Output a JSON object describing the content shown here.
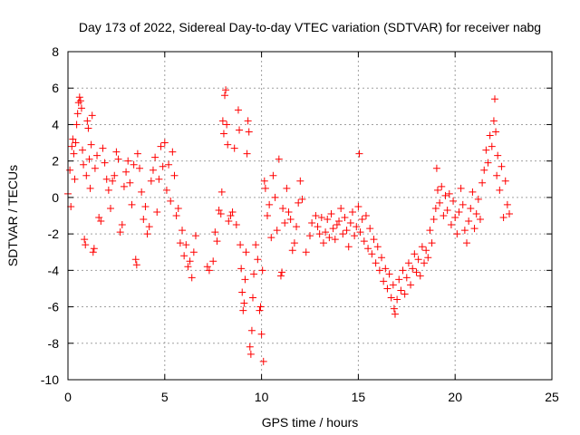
{
  "chart_data": {
    "type": "scatter",
    "title": "Day 173 of 2022, Sidereal Day-to-day VTEC variation (SDTVAR) for receiver nabg",
    "xlabel": "GPS time / hours",
    "ylabel": "SDTVAR / TECUs",
    "xlim": [
      0,
      25
    ],
    "ylim": [
      -10,
      8
    ],
    "xticks": [
      0,
      5,
      10,
      15,
      20,
      25
    ],
    "yticks": [
      -10,
      -8,
      -6,
      -4,
      -2,
      0,
      2,
      4,
      6,
      8
    ],
    "grid": true,
    "marker": "+",
    "color": "#ff0000",
    "series": [
      {
        "name": "SDTVAR",
        "points": [
          [
            0.0,
            0.2
          ],
          [
            0.1,
            1.5
          ],
          [
            0.15,
            -0.5
          ],
          [
            0.2,
            2.8
          ],
          [
            0.25,
            3.2
          ],
          [
            0.3,
            2.4
          ],
          [
            0.35,
            1.0
          ],
          [
            0.4,
            3.0
          ],
          [
            0.45,
            4.0
          ],
          [
            0.5,
            4.6
          ],
          [
            0.55,
            5.2
          ],
          [
            0.6,
            5.5
          ],
          [
            0.65,
            5.3
          ],
          [
            0.7,
            4.9
          ],
          [
            0.75,
            2.6
          ],
          [
            0.8,
            1.8
          ],
          [
            0.85,
            -2.3
          ],
          [
            0.9,
            -2.6
          ],
          [
            0.95,
            1.2
          ],
          [
            1.0,
            4.2
          ],
          [
            1.05,
            3.8
          ],
          [
            1.1,
            2.1
          ],
          [
            1.15,
            0.5
          ],
          [
            1.2,
            2.9
          ],
          [
            1.25,
            4.5
          ],
          [
            1.3,
            -3.0
          ],
          [
            1.35,
            -2.8
          ],
          [
            1.4,
            1.6
          ],
          [
            1.5,
            2.3
          ],
          [
            1.6,
            -1.1
          ],
          [
            1.7,
            -1.3
          ],
          [
            1.8,
            2.7
          ],
          [
            1.9,
            1.9
          ],
          [
            2.0,
            1.0
          ],
          [
            2.1,
            0.4
          ],
          [
            2.2,
            -0.6
          ],
          [
            2.3,
            0.9
          ],
          [
            2.4,
            1.2
          ],
          [
            2.5,
            2.5
          ],
          [
            2.6,
            2.1
          ],
          [
            2.7,
            -1.9
          ],
          [
            2.8,
            -1.5
          ],
          [
            2.9,
            0.6
          ],
          [
            3.0,
            1.4
          ],
          [
            3.1,
            2.0
          ],
          [
            3.2,
            0.8
          ],
          [
            3.3,
            -0.4
          ],
          [
            3.4,
            1.8
          ],
          [
            3.5,
            -3.4
          ],
          [
            3.55,
            -3.7
          ],
          [
            3.6,
            2.4
          ],
          [
            3.7,
            1.6
          ],
          [
            3.8,
            0.3
          ],
          [
            3.9,
            -1.2
          ],
          [
            4.0,
            -0.5
          ],
          [
            4.1,
            -2.0
          ],
          [
            4.2,
            -1.6
          ],
          [
            4.3,
            0.9
          ],
          [
            4.4,
            1.5
          ],
          [
            4.5,
            2.2
          ],
          [
            4.6,
            -0.8
          ],
          [
            4.7,
            1.0
          ],
          [
            4.8,
            2.8
          ],
          [
            4.9,
            1.7
          ],
          [
            5.0,
            3.0
          ],
          [
            5.1,
            0.4
          ],
          [
            5.2,
            1.8
          ],
          [
            5.3,
            -0.2
          ],
          [
            5.4,
            2.5
          ],
          [
            5.5,
            1.2
          ],
          [
            5.6,
            -1.0
          ],
          [
            5.7,
            -0.6
          ],
          [
            5.8,
            -2.5
          ],
          [
            5.9,
            -1.8
          ],
          [
            6.0,
            -3.2
          ],
          [
            6.1,
            -2.6
          ],
          [
            6.2,
            -3.8
          ],
          [
            6.3,
            -3.5
          ],
          [
            6.4,
            -4.4
          ],
          [
            6.5,
            -3.0
          ],
          [
            6.6,
            -2.1
          ],
          [
            7.2,
            -3.8
          ],
          [
            7.3,
            -4.0
          ],
          [
            7.5,
            -3.5
          ],
          [
            7.6,
            -1.9
          ],
          [
            7.7,
            -2.4
          ],
          [
            7.8,
            -0.7
          ],
          [
            7.9,
            -0.9
          ],
          [
            7.95,
            0.3
          ],
          [
            8.0,
            4.2
          ],
          [
            8.05,
            3.5
          ],
          [
            8.1,
            5.6
          ],
          [
            8.15,
            5.9
          ],
          [
            8.2,
            4.0
          ],
          [
            8.25,
            2.9
          ],
          [
            8.3,
            -1.3
          ],
          [
            8.4,
            -1.0
          ],
          [
            8.5,
            -0.8
          ],
          [
            8.6,
            2.7
          ],
          [
            8.7,
            -1.5
          ],
          [
            8.8,
            4.8
          ],
          [
            8.85,
            3.7
          ],
          [
            8.9,
            -2.6
          ],
          [
            8.95,
            -3.9
          ],
          [
            9.0,
            -5.2
          ],
          [
            9.05,
            -6.2
          ],
          [
            9.1,
            -5.8
          ],
          [
            9.15,
            -4.5
          ],
          [
            9.2,
            -3.0
          ],
          [
            9.25,
            2.4
          ],
          [
            9.3,
            4.2
          ],
          [
            9.35,
            3.6
          ],
          [
            9.4,
            -8.2
          ],
          [
            9.45,
            -8.6
          ],
          [
            9.5,
            -7.3
          ],
          [
            9.55,
            -5.5
          ],
          [
            9.6,
            -4.2
          ],
          [
            9.7,
            -2.6
          ],
          [
            9.8,
            -3.4
          ],
          [
            9.9,
            -6.2
          ],
          [
            9.95,
            -6.0
          ],
          [
            10.0,
            -7.5
          ],
          [
            10.05,
            -4.0
          ],
          [
            10.1,
            -9.0
          ],
          [
            10.15,
            0.9
          ],
          [
            10.2,
            0.5
          ],
          [
            10.3,
            -1.0
          ],
          [
            10.4,
            -0.4
          ],
          [
            10.5,
            -2.2
          ],
          [
            10.6,
            1.2
          ],
          [
            10.7,
            0.0
          ],
          [
            10.8,
            -1.8
          ],
          [
            10.9,
            2.1
          ],
          [
            11.0,
            -4.3
          ],
          [
            11.05,
            -4.1
          ],
          [
            11.1,
            -0.6
          ],
          [
            11.2,
            -1.4
          ],
          [
            11.3,
            0.5
          ],
          [
            11.4,
            -0.8
          ],
          [
            11.5,
            -1.2
          ],
          [
            11.6,
            -2.9
          ],
          [
            11.7,
            -2.5
          ],
          [
            11.8,
            -1.6
          ],
          [
            11.9,
            -0.3
          ],
          [
            12.0,
            0.9
          ],
          [
            12.1,
            -0.1
          ],
          [
            12.3,
            -3.0
          ],
          [
            12.5,
            -2.1
          ],
          [
            12.6,
            -1.4
          ],
          [
            12.8,
            -1.0
          ],
          [
            12.9,
            -1.6
          ],
          [
            13.0,
            -2.0
          ],
          [
            13.1,
            -1.1
          ],
          [
            13.2,
            -2.5
          ],
          [
            13.3,
            -1.9
          ],
          [
            13.4,
            -1.2
          ],
          [
            13.5,
            -2.2
          ],
          [
            13.6,
            -0.9
          ],
          [
            13.7,
            -1.7
          ],
          [
            13.8,
            -2.3
          ],
          [
            13.9,
            -1.5
          ],
          [
            14.0,
            -1.3
          ],
          [
            14.1,
            -0.6
          ],
          [
            14.2,
            -2.0
          ],
          [
            14.3,
            -1.1
          ],
          [
            14.4,
            -1.8
          ],
          [
            14.5,
            -2.7
          ],
          [
            14.6,
            -1.4
          ],
          [
            14.7,
            -0.8
          ],
          [
            14.8,
            -2.1
          ],
          [
            14.9,
            -1.6
          ],
          [
            15.0,
            -0.5
          ],
          [
            15.05,
            2.4
          ],
          [
            15.1,
            -1.9
          ],
          [
            15.2,
            -1.2
          ],
          [
            15.3,
            -2.4
          ],
          [
            15.4,
            -1.0
          ],
          [
            15.5,
            -2.8
          ],
          [
            15.6,
            -1.7
          ],
          [
            15.7,
            -3.1
          ],
          [
            15.8,
            -2.3
          ],
          [
            15.9,
            -3.6
          ],
          [
            16.0,
            -2.7
          ],
          [
            16.1,
            -4.0
          ],
          [
            16.2,
            -3.3
          ],
          [
            16.3,
            -4.6
          ],
          [
            16.4,
            -3.9
          ],
          [
            16.5,
            -5.0
          ],
          [
            16.6,
            -4.2
          ],
          [
            16.7,
            -5.5
          ],
          [
            16.8,
            -4.8
          ],
          [
            16.85,
            -6.1
          ],
          [
            16.9,
            -6.4
          ],
          [
            17.0,
            -5.6
          ],
          [
            17.1,
            -4.5
          ],
          [
            17.2,
            -5.1
          ],
          [
            17.3,
            -4.0
          ],
          [
            17.4,
            -5.3
          ],
          [
            17.5,
            -4.4
          ],
          [
            17.6,
            -3.6
          ],
          [
            17.7,
            -4.8
          ],
          [
            17.8,
            -3.9
          ],
          [
            17.9,
            -3.1
          ],
          [
            18.0,
            -4.1
          ],
          [
            18.1,
            -3.4
          ],
          [
            18.2,
            -4.3
          ],
          [
            18.3,
            -2.7
          ],
          [
            18.4,
            -3.6
          ],
          [
            18.5,
            -2.9
          ],
          [
            18.6,
            -3.3
          ],
          [
            18.7,
            -1.8
          ],
          [
            18.8,
            -2.5
          ],
          [
            18.9,
            -1.2
          ],
          [
            19.0,
            -0.6
          ],
          [
            19.05,
            1.6
          ],
          [
            19.1,
            0.4
          ],
          [
            19.2,
            -0.3
          ],
          [
            19.3,
            0.6
          ],
          [
            19.4,
            -1.0
          ],
          [
            19.5,
            0.1
          ],
          [
            19.6,
            -0.7
          ],
          [
            19.7,
            0.2
          ],
          [
            19.8,
            -1.5
          ],
          [
            19.9,
            -0.2
          ],
          [
            20.0,
            -1.1
          ],
          [
            20.1,
            -2.0
          ],
          [
            20.2,
            -0.8
          ],
          [
            20.3,
            0.5
          ],
          [
            20.4,
            -0.4
          ],
          [
            20.5,
            -1.8
          ],
          [
            20.6,
            -2.5
          ],
          [
            20.7,
            -1.3
          ],
          [
            20.8,
            -0.6
          ],
          [
            20.9,
            0.3
          ],
          [
            21.0,
            -1.7
          ],
          [
            21.1,
            -0.9
          ],
          [
            21.2,
            -0.1
          ],
          [
            21.3,
            -1.2
          ],
          [
            21.4,
            0.8
          ],
          [
            21.5,
            1.5
          ],
          [
            21.6,
            2.6
          ],
          [
            21.7,
            1.9
          ],
          [
            21.8,
            3.4
          ],
          [
            21.9,
            2.8
          ],
          [
            22.0,
            4.2
          ],
          [
            22.05,
            5.4
          ],
          [
            22.1,
            3.6
          ],
          [
            22.15,
            1.2
          ],
          [
            22.2,
            2.3
          ],
          [
            22.3,
            0.4
          ],
          [
            22.4,
            1.7
          ],
          [
            22.5,
            -1.1
          ],
          [
            22.6,
            0.9
          ],
          [
            22.7,
            -0.4
          ],
          [
            22.8,
            -0.9
          ]
        ]
      }
    ]
  }
}
